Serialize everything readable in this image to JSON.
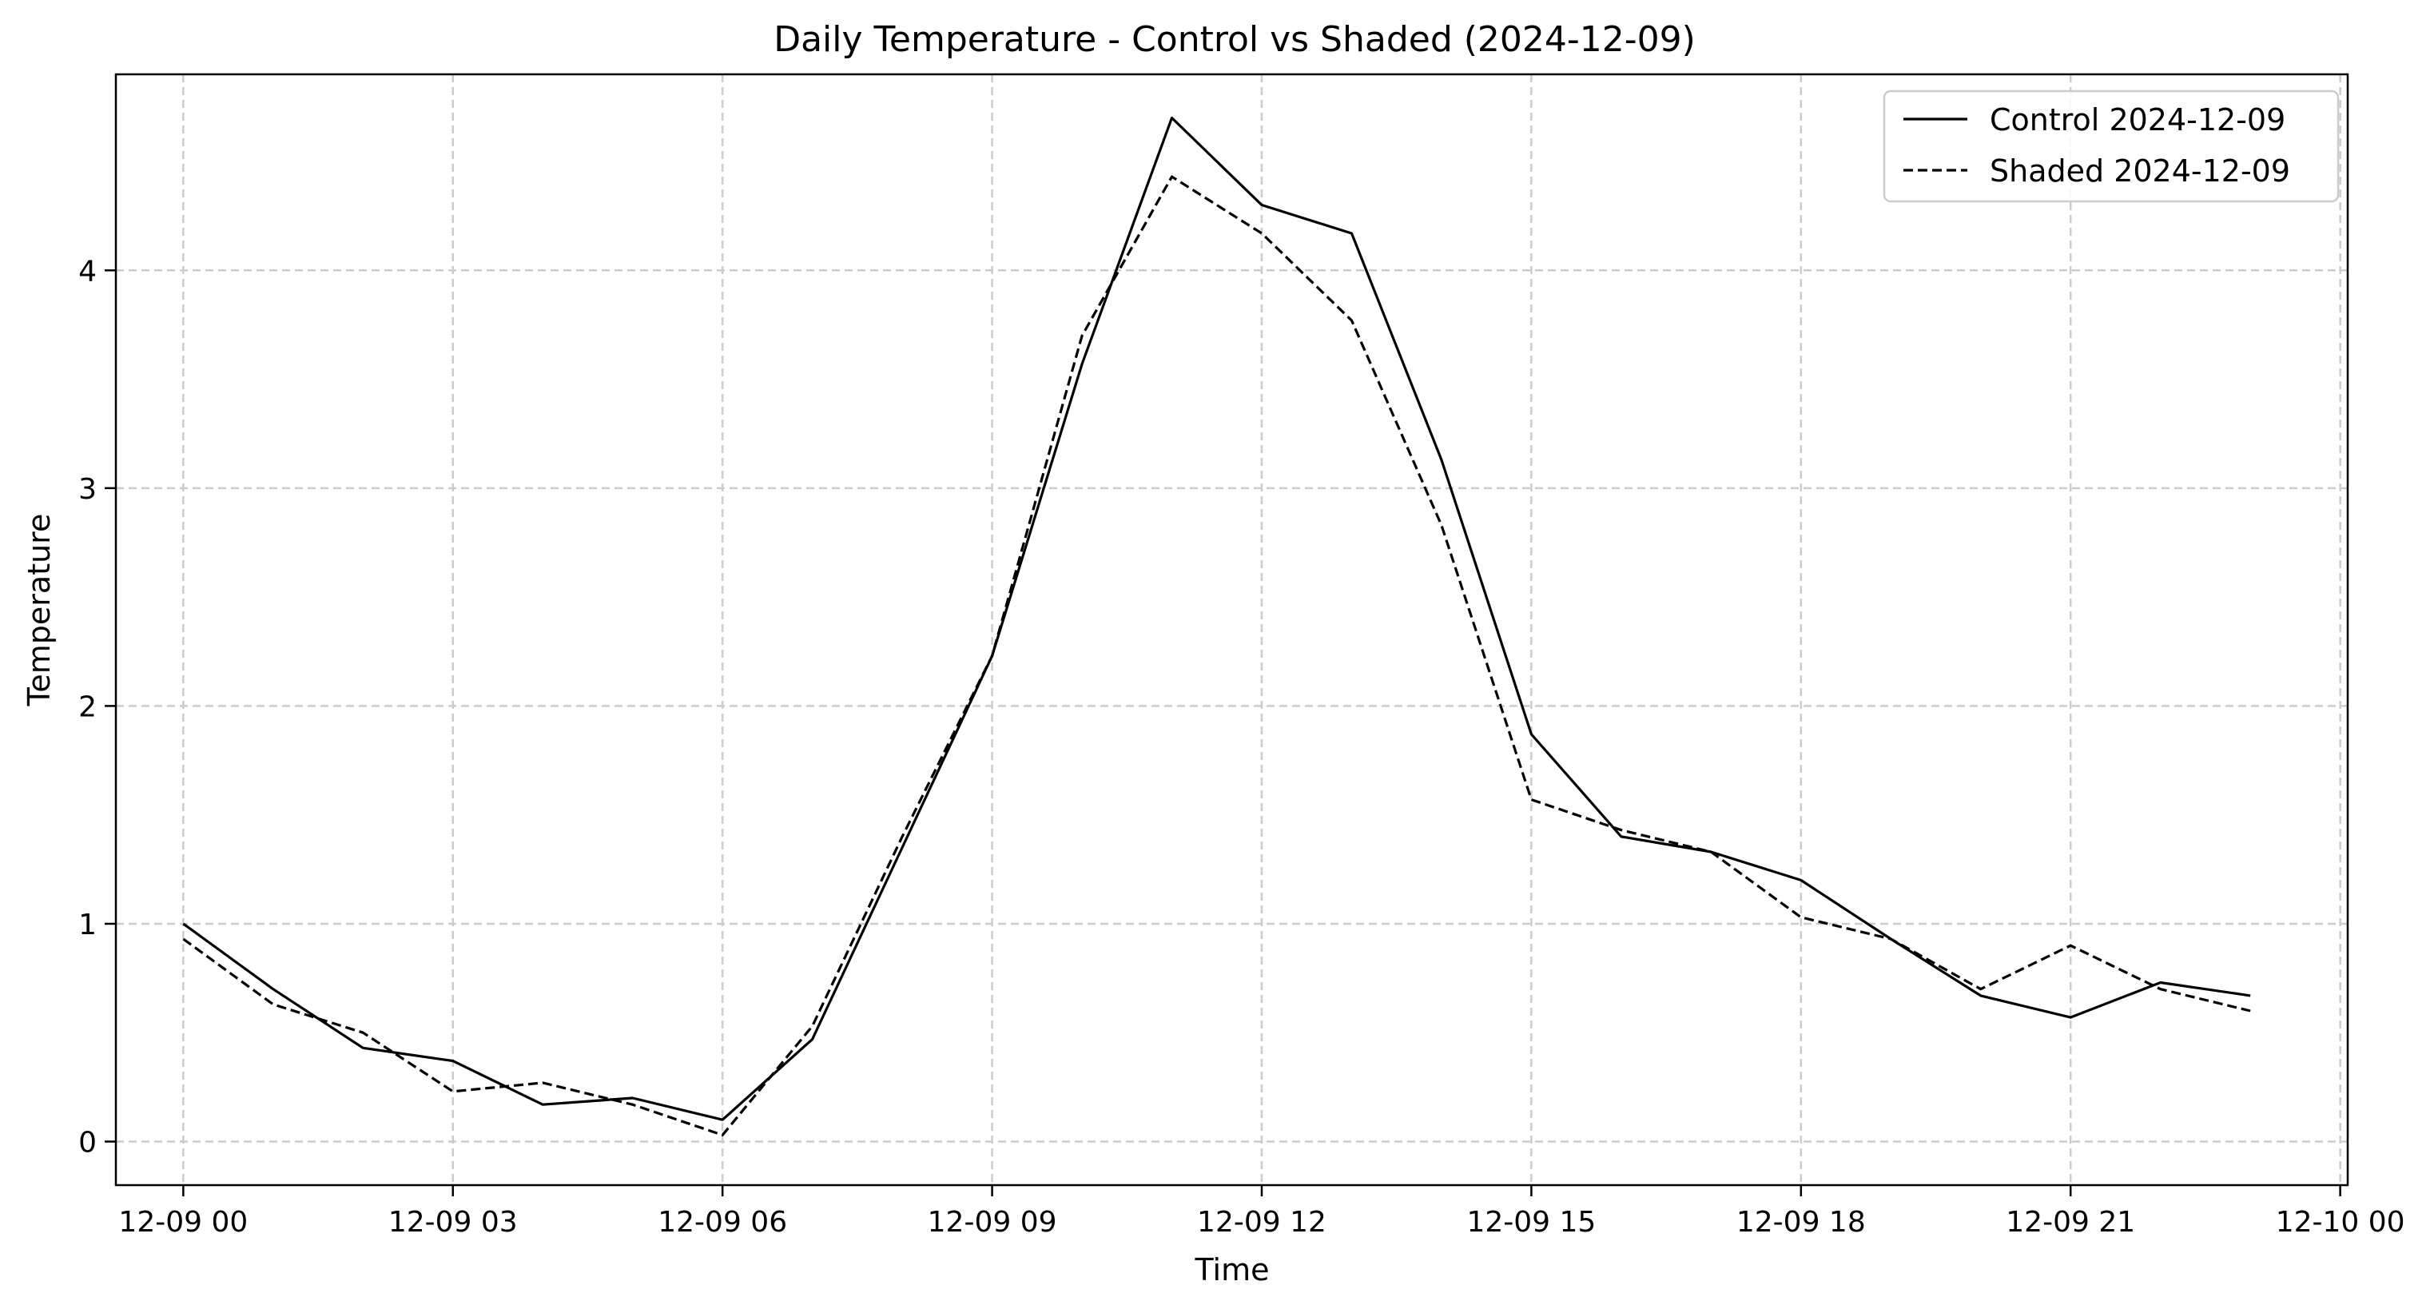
{
  "chart_data": {
    "type": "line",
    "title": "Daily Temperature - Control vs Shaded (2024-12-09)",
    "xlabel": "Time",
    "ylabel": "Temperature",
    "xlim": [
      "2024-12-08 23:15",
      "2024-12-10 00:05"
    ],
    "ylim": [
      -0.2,
      4.9
    ],
    "grid": true,
    "legend_position": "top-right",
    "x_ticks": [
      {
        "value": "2024-12-09 00:00",
        "label": "12-09 00"
      },
      {
        "value": "2024-12-09 03:00",
        "label": "12-09 03"
      },
      {
        "value": "2024-12-09 06:00",
        "label": "12-09 06"
      },
      {
        "value": "2024-12-09 09:00",
        "label": "12-09 09"
      },
      {
        "value": "2024-12-09 12:00",
        "label": "12-09 12"
      },
      {
        "value": "2024-12-09 15:00",
        "label": "12-09 15"
      },
      {
        "value": "2024-12-09 18:00",
        "label": "12-09 18"
      },
      {
        "value": "2024-12-09 21:00",
        "label": "12-09 21"
      },
      {
        "value": "2024-12-10 00:00",
        "label": "12-10 00"
      }
    ],
    "y_ticks": [
      {
        "value": 0,
        "label": "0"
      },
      {
        "value": 1,
        "label": "1"
      },
      {
        "value": 2,
        "label": "2"
      },
      {
        "value": 3,
        "label": "3"
      },
      {
        "value": 4,
        "label": "4"
      }
    ],
    "x": [
      "2024-12-09 00:00",
      "2024-12-09 01:00",
      "2024-12-09 02:00",
      "2024-12-09 03:00",
      "2024-12-09 04:00",
      "2024-12-09 05:00",
      "2024-12-09 06:00",
      "2024-12-09 07:00",
      "2024-12-09 08:00",
      "2024-12-09 09:00",
      "2024-12-09 10:00",
      "2024-12-09 11:00",
      "2024-12-09 12:00",
      "2024-12-09 13:00",
      "2024-12-09 14:00",
      "2024-12-09 15:00",
      "2024-12-09 16:00",
      "2024-12-09 17:00",
      "2024-12-09 18:00",
      "2024-12-09 19:00",
      "2024-12-09 20:00",
      "2024-12-09 21:00",
      "2024-12-09 22:00",
      "2024-12-09 23:00"
    ],
    "series": [
      {
        "name": "Control 2024-12-09",
        "style": "solid",
        "color": "#000000",
        "values": [
          1.0,
          0.7,
          0.43,
          0.37,
          0.17,
          0.2,
          0.1,
          0.47,
          1.35,
          2.23,
          3.57,
          4.7,
          4.3,
          4.17,
          3.13,
          1.87,
          1.4,
          1.33,
          1.2,
          0.93,
          0.67,
          0.57,
          0.73,
          0.67
        ]
      },
      {
        "name": "Shaded 2024-12-09",
        "style": "dashed",
        "color": "#000000",
        "values": [
          0.93,
          0.63,
          0.5,
          0.23,
          0.27,
          0.17,
          0.03,
          0.53,
          1.4,
          2.23,
          3.7,
          4.43,
          4.17,
          3.77,
          2.83,
          1.57,
          1.43,
          1.33,
          1.03,
          0.93,
          0.7,
          0.9,
          0.7,
          0.6
        ]
      }
    ]
  }
}
